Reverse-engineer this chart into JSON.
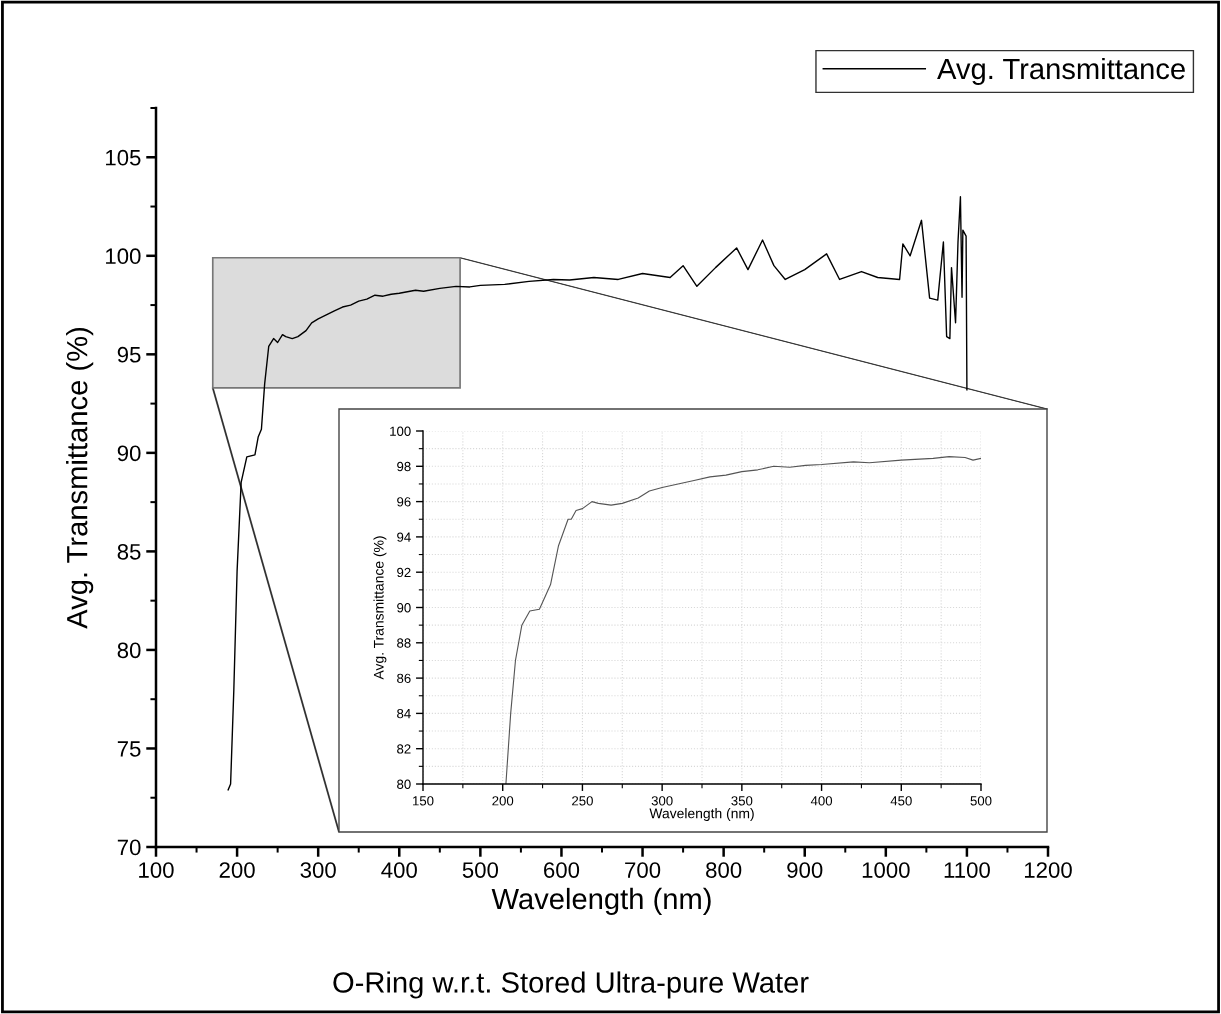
{
  "chart_data": [
    {
      "type": "line",
      "xlabel": "Wavelength (nm)",
      "ylabel": "Avg. Transmittance (%)",
      "xlim": [
        100,
        1200
      ],
      "ylim": [
        70,
        107.5
      ],
      "xticks": [
        100,
        200,
        300,
        400,
        500,
        600,
        700,
        800,
        900,
        1000,
        1100,
        1200
      ],
      "yticks": [
        70,
        75,
        80,
        85,
        90,
        95,
        100,
        105
      ],
      "grid": false,
      "legend": "top right",
      "marker": "none",
      "line_style": "solid",
      "annotations": [
        "O-Ring w.r.t. Stored Ultra-pure Water"
      ],
      "series": [
        {
          "name": "Avg. Transmittance",
          "color": "#000000",
          "x": [
            189,
            192,
            196,
            200,
            205,
            212,
            222,
            226,
            230,
            234,
            239,
            245,
            250,
            256,
            260,
            268,
            275,
            285,
            292,
            300,
            310,
            320,
            330,
            340,
            350,
            360,
            370,
            380,
            390,
            400,
            420,
            430,
            450,
            470,
            487,
            500,
            530,
            560,
            590,
            610,
            640,
            670,
            700,
            734,
            750,
            767,
            790,
            816,
            830,
            848,
            862,
            876,
            900,
            927,
            943,
            970,
            990,
            1017,
            1021,
            1030,
            1044,
            1054,
            1064,
            1071,
            1075,
            1079,
            1081,
            1086,
            1089,
            1092,
            1094,
            1095,
            1099,
            1100
          ],
          "values": [
            72.9,
            73.2,
            78,
            84,
            88.5,
            89.8,
            89.9,
            90.8,
            91.2,
            93.5,
            95.4,
            95.8,
            95.6,
            96,
            95.9,
            95.8,
            95.9,
            96.2,
            96.6,
            96.8,
            97.0,
            97.2,
            97.4,
            97.5,
            97.7,
            97.8,
            98.0,
            97.95,
            98.05,
            98.1,
            98.25,
            98.2,
            98.35,
            98.45,
            98.42,
            98.5,
            98.55,
            98.7,
            98.8,
            98.77,
            98.9,
            98.8,
            99.1,
            98.9,
            99.5,
            98.45,
            99.4,
            100.4,
            99.3,
            100.8,
            99.5,
            98.8,
            99.3,
            100.1,
            98.8,
            99.2,
            98.9,
            98.8,
            100.6,
            100.0,
            101.8,
            97.85,
            97.75,
            100.7,
            95.9,
            95.8,
            99.4,
            96.6,
            100.7,
            103.0,
            97.9,
            101.3,
            101.0,
            93.2
          ]
        }
      ]
    },
    {
      "type": "line",
      "xlabel": "Wavelength (nm)",
      "ylabel": "Avg. Transmittance (%)",
      "xlim": [
        150,
        500
      ],
      "ylim": [
        80,
        100
      ],
      "xticks": [
        150,
        200,
        250,
        300,
        350,
        400,
        450,
        500
      ],
      "yticks": [
        80,
        82,
        84,
        86,
        88,
        90,
        92,
        94,
        96,
        98,
        100
      ],
      "grid": true,
      "legend": false,
      "marker": "none",
      "line_style": "solid",
      "series": [
        {
          "color": "#555555",
          "x": [
            202,
            205,
            208,
            212,
            217,
            223,
            226,
            230,
            235,
            241,
            243,
            246,
            250,
            256,
            260,
            268,
            275,
            285,
            292,
            300,
            310,
            320,
            330,
            340,
            350,
            360,
            370,
            380,
            390,
            400,
            420,
            430,
            450,
            470,
            480,
            490,
            495,
            500
          ],
          "values": [
            80,
            84,
            87,
            89,
            89.8,
            89.9,
            90.5,
            91.3,
            93.5,
            95,
            95,
            95.5,
            95.6,
            96,
            95.9,
            95.8,
            95.9,
            96.2,
            96.6,
            96.8,
            97.0,
            97.2,
            97.4,
            97.5,
            97.7,
            97.8,
            98.0,
            97.95,
            98.05,
            98.1,
            98.25,
            98.2,
            98.35,
            98.45,
            98.55,
            98.5,
            98.35,
            98.45
          ]
        }
      ]
    }
  ]
}
